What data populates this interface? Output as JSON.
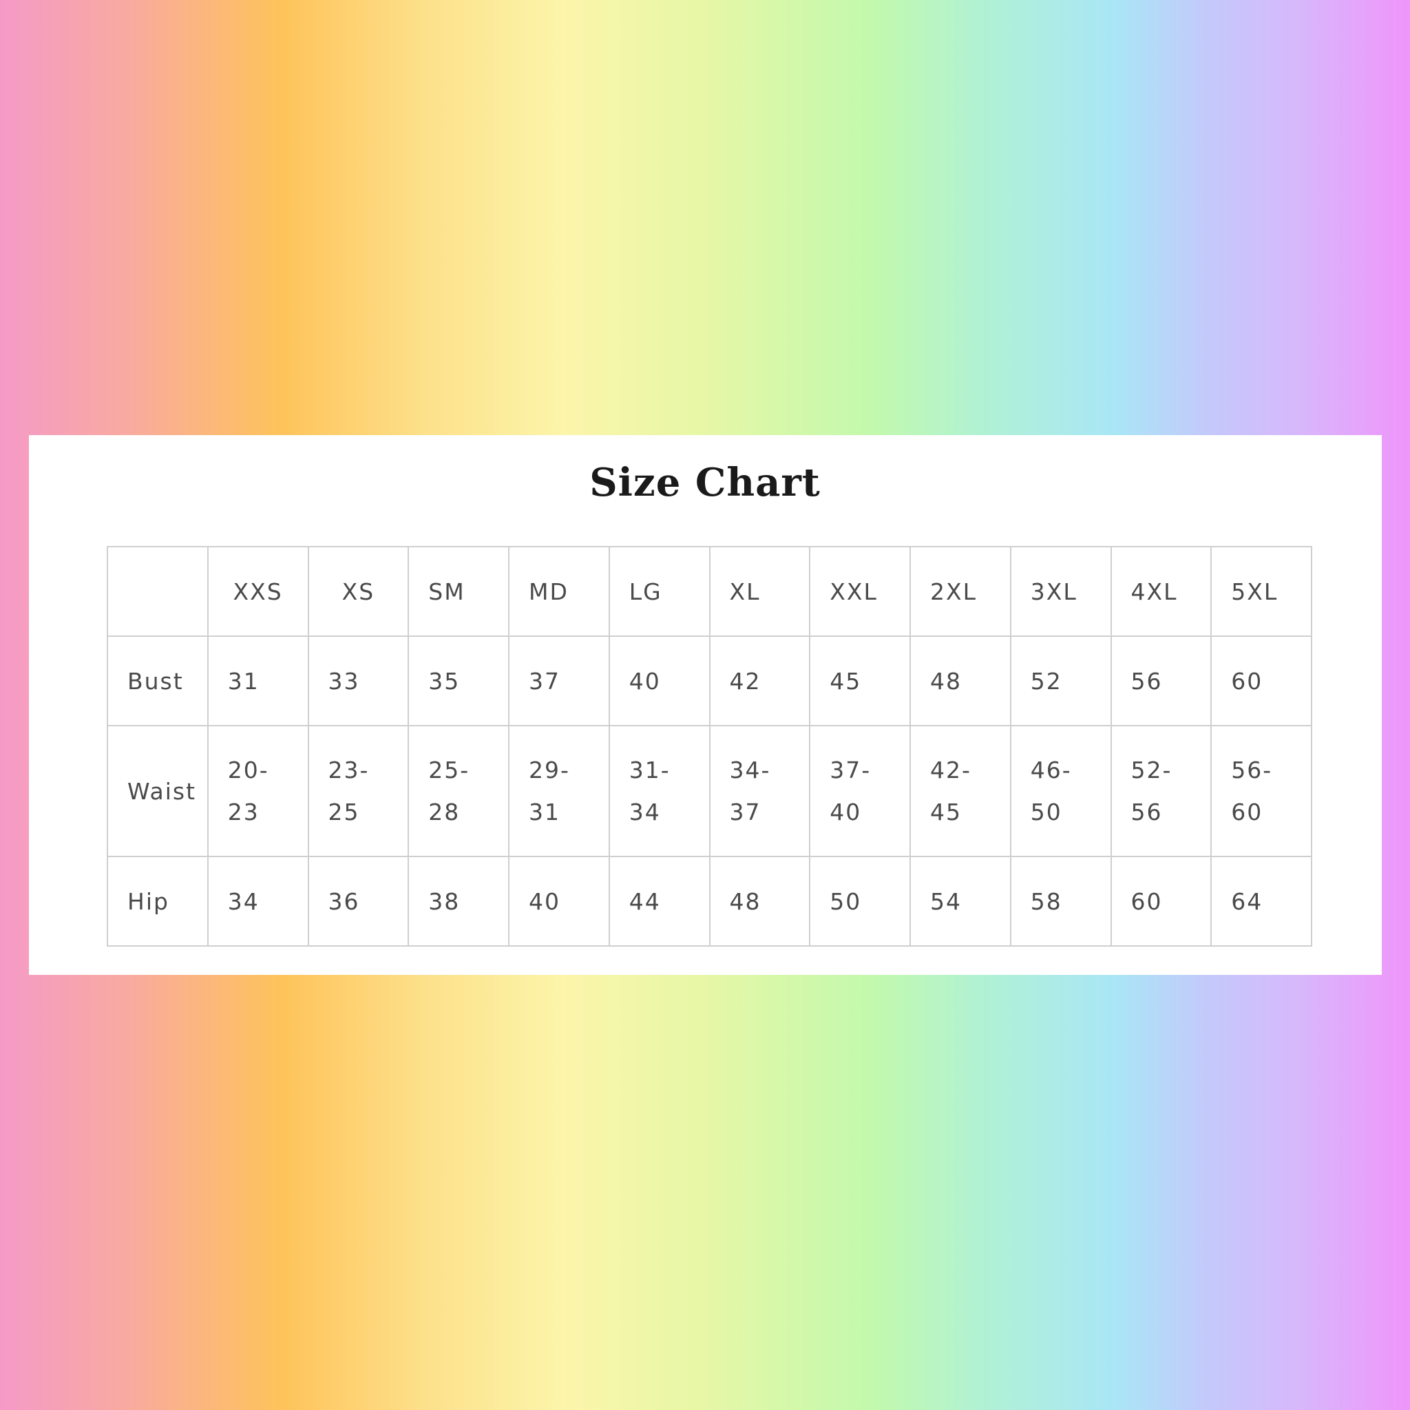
{
  "title": "Size Chart",
  "columns": [
    "",
    "XXS",
    "XS",
    "SM",
    "MD",
    "LG",
    "XL",
    "XXL",
    "2XL",
    "3XL",
    "4XL",
    "5XL"
  ],
  "rows": [
    {
      "label": "Bust",
      "values": [
        "31",
        "33",
        "35",
        "37",
        "40",
        "42",
        "45",
        "48",
        "52",
        "56",
        "60"
      ]
    },
    {
      "label": "Waist",
      "values": [
        "20-\n23",
        "23-\n25",
        "25-\n28",
        "29-\n31",
        "31-\n34",
        "34-\n37",
        "37-\n40",
        "42-\n45",
        "46-\n50",
        "52-\n56",
        "56-\n60"
      ]
    },
    {
      "label": "Hip",
      "values": [
        "34",
        "36",
        "38",
        "40",
        "44",
        "48",
        "50",
        "54",
        "58",
        "60",
        "64"
      ]
    }
  ]
}
